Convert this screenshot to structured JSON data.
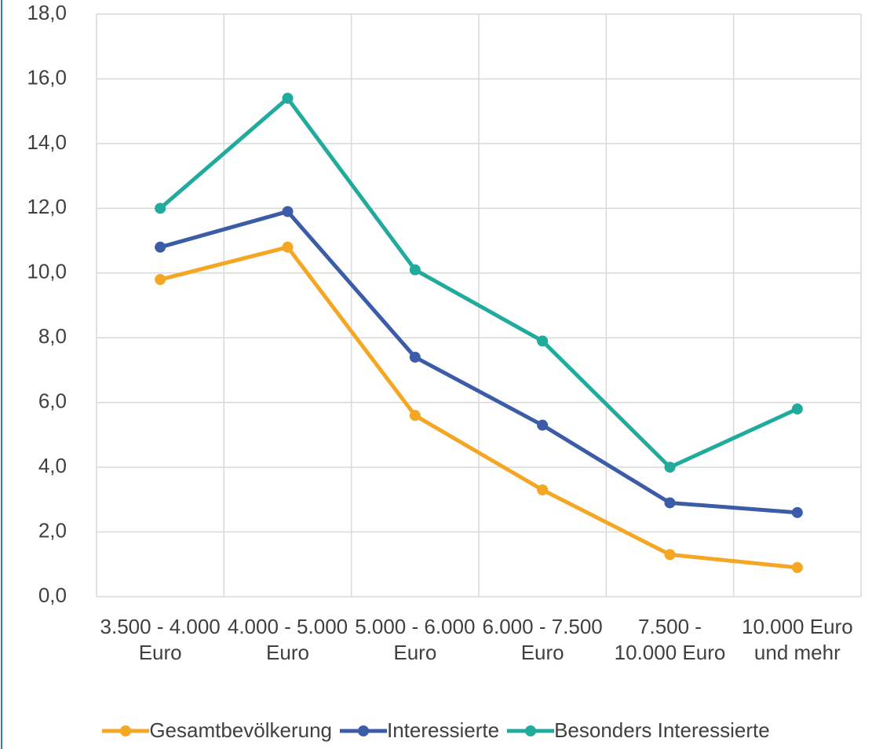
{
  "chart_data": {
    "type": "line",
    "categories": [
      "3.500 - 4.000 Euro",
      "4.000 - 5.000 Euro",
      "5.000 - 6.000 Euro",
      "6.000 - 7.500 Euro",
      "7.500 - 10.000 Euro",
      "10.000 Euro und mehr"
    ],
    "series": [
      {
        "name": "Gesamtbevölkerung",
        "color": "#f5a623",
        "values": [
          9.8,
          10.8,
          5.6,
          3.3,
          1.3,
          0.9
        ]
      },
      {
        "name": "Interessierte",
        "color": "#3c5ca8",
        "values": [
          10.8,
          11.9,
          7.4,
          5.3,
          2.9,
          2.6
        ]
      },
      {
        "name": "Besonders Interessierte",
        "color": "#20ab9c",
        "values": [
          12.0,
          15.4,
          10.1,
          7.9,
          4.0,
          5.8
        ]
      }
    ],
    "ylim": [
      0,
      18
    ],
    "yticks": [
      {
        "value": 0,
        "label": "0,0"
      },
      {
        "value": 2,
        "label": "2,0"
      },
      {
        "value": 4,
        "label": "4,0"
      },
      {
        "value": 6,
        "label": "6,0"
      },
      {
        "value": 8,
        "label": "8,0"
      },
      {
        "value": 10,
        "label": "10,0"
      },
      {
        "value": 12,
        "label": "12,0"
      },
      {
        "value": 14,
        "label": "14,0"
      },
      {
        "value": 16,
        "label": "16,0"
      },
      {
        "value": 18,
        "label": "18,0"
      }
    ],
    "grid": true,
    "legend": "bottom"
  }
}
